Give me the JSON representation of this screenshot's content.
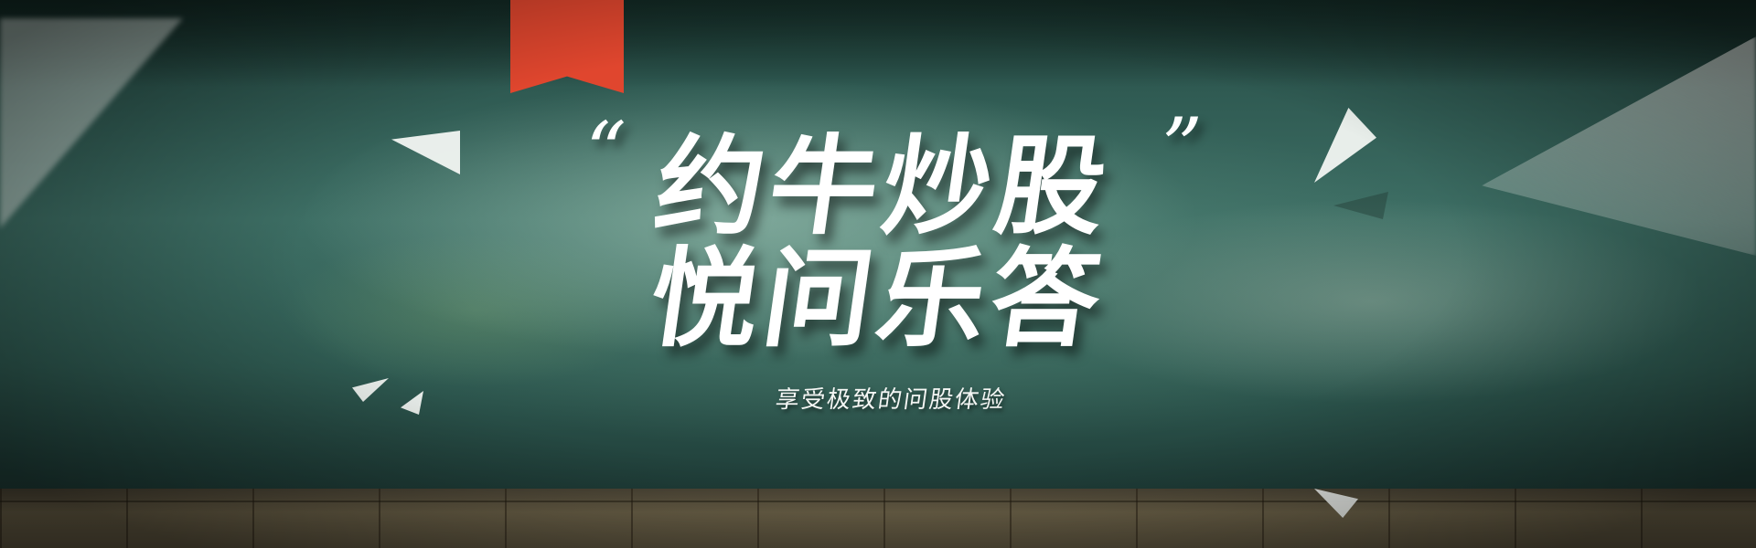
{
  "banner": {
    "quote_open": "“",
    "quote_close": "”",
    "title_line_1": "约牛炒股",
    "title_line_2": "悦问乐答",
    "subtitle": "享受极致的问股体验"
  },
  "colors": {
    "ribbon": "#e0462e",
    "wall": "#3d6e64",
    "text": "#ffffff"
  },
  "icons": [
    "bookmark-ribbon-icon",
    "triangle-shard-icon"
  ]
}
